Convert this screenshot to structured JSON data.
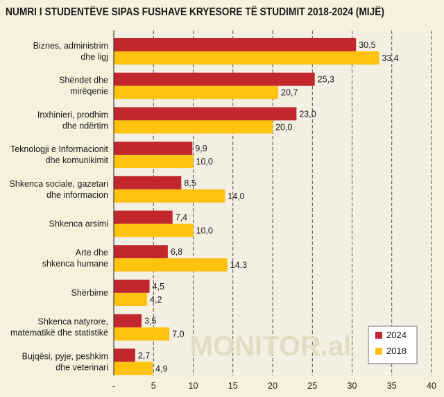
{
  "chart_data": {
    "type": "bar",
    "orientation": "horizontal",
    "title": "NUMRI I STUDENTËVE SIPAS FUSHAVE KRYESORE TË STUDIMIT 2018-2024 (MIJË)",
    "categories": [
      [
        "Biznes, administrim",
        "dhe ligj"
      ],
      [
        "Shëndet dhe",
        "mirëqenie"
      ],
      [
        "Inxhinieri, prodhim",
        "dhe ndërtim"
      ],
      [
        "Teknologji e Informacionit",
        "dhe komunikimit"
      ],
      [
        "Shkenca sociale, gazetari",
        "dhe informacion"
      ],
      [
        "Shkenca arsimi"
      ],
      [
        "Arte dhe",
        "shkenca humane"
      ],
      [
        "Shërbime"
      ],
      [
        "Shkenca natyrore,",
        "matematikë dhe statistikë"
      ],
      [
        "Bujqësi, pyje, peshkim",
        "dhe veterinari"
      ]
    ],
    "series": [
      {
        "name": "2024",
        "color": "#c1272d",
        "values": [
          30.5,
          25.3,
          23.0,
          9.9,
          8.5,
          7.4,
          6.8,
          4.5,
          3.5,
          2.7
        ],
        "labels": [
          "30,5",
          "25,3",
          "23,0",
          "9,9",
          "8,5",
          "7,4",
          "6,8",
          "4,5",
          "3,5",
          "2,7"
        ]
      },
      {
        "name": "2018",
        "color": "#ffc20e",
        "values": [
          33.4,
          20.7,
          20.0,
          10.0,
          14.0,
          10.0,
          14.3,
          4.2,
          7.0,
          4.9
        ],
        "labels": [
          "33,4",
          "20,7",
          "20,0",
          "10,0",
          "14,0",
          "10,0",
          "14,3",
          "4,2",
          "7,0",
          "4,9"
        ]
      }
    ],
    "xlim": [
      0,
      40
    ],
    "ticks": [
      0,
      5,
      10,
      15,
      20,
      25,
      30,
      35,
      40
    ],
    "tick_labels": [
      "-",
      "5",
      "10",
      "15",
      "20",
      "25",
      "30",
      "35",
      "40"
    ],
    "grid": true,
    "legend": "bottom-right",
    "watermark": "MONITOR.al"
  }
}
